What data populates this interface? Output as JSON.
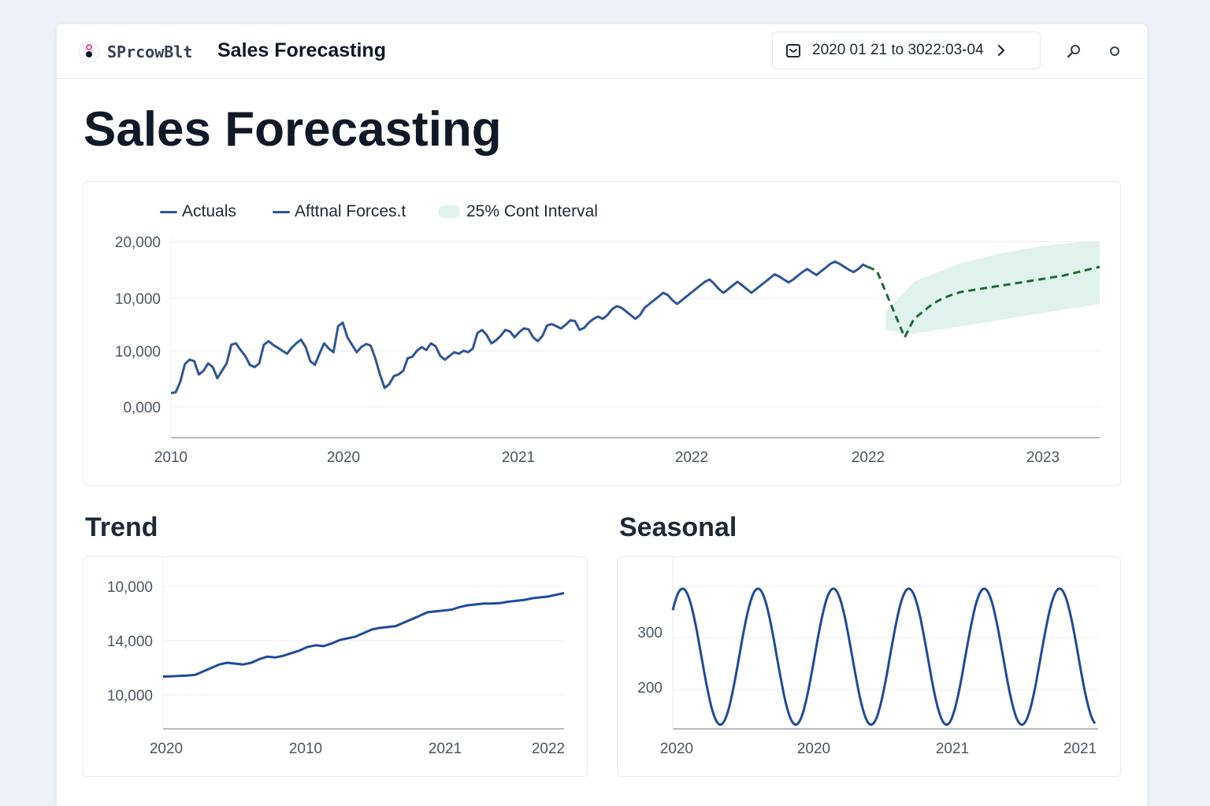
{
  "header": {
    "logo_text": "SPrcowBlt",
    "app_title": "Sales Forecasting",
    "date_range": "2020 01 21 to 3022:03-04",
    "icons": [
      "calendar-icon",
      "chevron-right-icon",
      "search-icon",
      "settings-icon"
    ]
  },
  "page": {
    "title": "Sales Forecasting"
  },
  "colors": {
    "actuals": "#2f5596",
    "forecast": "#1d6b35",
    "interval": "#dff2ec",
    "trend": "#1f4b99",
    "seasonal": "#1f4b99"
  },
  "main_chart": {
    "legend": {
      "actuals": "Actuals",
      "forecast": "Afttnal Forces.t",
      "interval": "25% Cont Interval"
    },
    "y_ticks": [
      "20,000",
      "10,000",
      "10,000",
      "0,000"
    ],
    "x_ticks": [
      "2010",
      "2020",
      "2021",
      "2022",
      "2022",
      "2023"
    ]
  },
  "trend": {
    "title": "Trend",
    "y_ticks": [
      "10,000",
      "14,000",
      "10,000"
    ],
    "x_ticks": [
      "2020",
      "2010",
      "2021",
      "2022"
    ]
  },
  "seasonal": {
    "title": "Seasonal",
    "y_ticks": [
      "300",
      "200"
    ],
    "x_ticks": [
      "2020",
      "2020",
      "2021",
      "2021"
    ]
  },
  "chart_data": [
    {
      "type": "line",
      "legend": [
        "Actuals",
        "Afttnal Forces.t",
        "25% Cont Interval"
      ],
      "legend_position": "top-left",
      "grid": true,
      "ylim": [
        -5500,
        21000
      ],
      "x_domain": [
        0,
        100
      ],
      "series": [
        {
          "name": "Actuals",
          "x": [
            0,
            0.5,
            1,
            1.5,
            2,
            2.5,
            3,
            3.5,
            4,
            4.5,
            5,
            5.5,
            6,
            6.5,
            7,
            7.5,
            8,
            8.5,
            9,
            9.5,
            10,
            10.5,
            11,
            11.5,
            12,
            12.5,
            13,
            13.5,
            14,
            14.5,
            15,
            15.5,
            16,
            16.5,
            17,
            17.5,
            18,
            18.5,
            19,
            19.5,
            20,
            20.5,
            21,
            21.5,
            22,
            22.5,
            23,
            23.5,
            24,
            24.5,
            25,
            25.5,
            26,
            26.5,
            27,
            27.5,
            28,
            28.5,
            29,
            29.5,
            30,
            30.5,
            31,
            31.5,
            32,
            32.5,
            33,
            33.5,
            34,
            34.5,
            35,
            35.5,
            36,
            36.5,
            37,
            37.5,
            38,
            38.5,
            39,
            39.5,
            40,
            40.5,
            41,
            41.5,
            42,
            42.5,
            43,
            43.5,
            44,
            44.5,
            45,
            45.5,
            46,
            46.5,
            47,
            47.5,
            48,
            48.5,
            49,
            49.5,
            50,
            50.5,
            51,
            51.5,
            52,
            52.5,
            53,
            53.5,
            54,
            54.5,
            55,
            55.5,
            56,
            56.5,
            57,
            57.5,
            58,
            58.5,
            59,
            59.5,
            60,
            60.5,
            61,
            61.5,
            62,
            62.5,
            63,
            63.5,
            64,
            64.5,
            65,
            65.5,
            66,
            66.5,
            67,
            67.5,
            68,
            68.5,
            69,
            69.5,
            70,
            70.5,
            71,
            71.5,
            72,
            72.5,
            73,
            73.5,
            74,
            74.5,
            75
          ],
          "values": [
            500,
            600,
            2000,
            4400,
            5000,
            4800,
            3000,
            3500,
            4500,
            4000,
            2500,
            3500,
            4500,
            7000,
            7200,
            6300,
            5500,
            4300,
            4000,
            4500,
            7000,
            7500,
            7000,
            6600,
            6200,
            5800,
            6600,
            7200,
            7700,
            6700,
            4800,
            4300,
            5800,
            7200,
            6500,
            6000,
            9500,
            10000,
            8000,
            7000,
            6000,
            6700,
            7100,
            6900,
            5200,
            3000,
            1200,
            1700,
            2800,
            3000,
            3500,
            5200,
            5400,
            6200,
            6700,
            6300,
            7200,
            6800,
            5500,
            5000,
            5500,
            6000,
            5800,
            6200,
            6000,
            6500,
            8600,
            9000,
            8300,
            7200,
            7600,
            8200,
            9000,
            8800,
            8000,
            8700,
            9200,
            9100,
            8000,
            7500,
            8200,
            9600,
            9800,
            9500,
            9200,
            9700,
            10300,
            10200,
            9000,
            9300,
            10000,
            10500,
            10800,
            10500,
            11000,
            11800,
            12200,
            12000,
            11500,
            11000,
            10500,
            11000,
            12000,
            12500,
            13000,
            13500,
            14000,
            13700,
            13000,
            12500,
            13000,
            13500,
            14000,
            14500,
            15000,
            15500,
            15800,
            15200,
            14500,
            14000,
            14500,
            15000,
            15500,
            15000,
            14500,
            14000,
            14500,
            15000,
            15500,
            16000,
            16500,
            16200,
            15800,
            15400,
            15800,
            16300,
            16800,
            17200,
            16800,
            16400,
            16900,
            17400,
            17900,
            18200,
            17900,
            17500,
            17100,
            16800,
            17200,
            17800,
            17500
          ]
        },
        {
          "name": "Afttnal Forces.t",
          "x": [
            75,
            76,
            77,
            78,
            79,
            80,
            81,
            82,
            83,
            84,
            85,
            86,
            87,
            88,
            89,
            90,
            91,
            92,
            93,
            94,
            95,
            96,
            97,
            98,
            99,
            100
          ],
          "values": [
            17500,
            17000,
            14000,
            11000,
            8000,
            10500,
            11500,
            12500,
            13200,
            13700,
            14100,
            14300,
            14500,
            14700,
            14900,
            15100,
            15300,
            15500,
            15700,
            15900,
            16100,
            16300,
            16600,
            16900,
            17200,
            17500
          ]
        },
        {
          "name": "25% Cont Interval",
          "x": [
            77,
            80,
            85,
            90,
            95,
            100
          ],
          "upper": [
            11500,
            15500,
            18000,
            19500,
            20500,
            21000
          ],
          "lower": [
            9000,
            8500,
            9500,
            10500,
            11500,
            12500
          ]
        }
      ]
    },
    {
      "type": "line",
      "title": "Trend",
      "grid": true,
      "ylim": [
        6500,
        15000
      ],
      "series": [
        {
          "x": [
            0,
            2,
            4,
            6,
            8,
            10,
            12,
            14,
            16,
            18,
            20,
            22,
            24,
            26,
            28,
            30,
            32,
            34,
            36,
            38,
            40,
            42,
            44,
            46,
            48,
            50,
            52,
            54,
            56,
            58,
            60,
            62,
            64,
            66,
            68,
            70,
            72,
            74,
            76,
            78,
            80,
            82,
            84,
            86,
            88,
            90,
            92,
            94,
            96,
            98,
            100
          ],
          "values": [
            9500,
            9520,
            9540,
            9560,
            9600,
            9800,
            10000,
            10200,
            10300,
            10250,
            10200,
            10300,
            10500,
            10650,
            10600,
            10700,
            10850,
            11000,
            11200,
            11300,
            11250,
            11400,
            11600,
            11700,
            11800,
            12000,
            12200,
            12300,
            12350,
            12400,
            12600,
            12800,
            13000,
            13200,
            13250,
            13300,
            13350,
            13500,
            13600,
            13650,
            13700,
            13700,
            13720,
            13800,
            13850,
            13900,
            14000,
            14050,
            14100,
            14200,
            14300
          ]
        }
      ]
    },
    {
      "type": "line",
      "title": "Seasonal",
      "grid": true,
      "ylim": [
        140,
        390
      ],
      "series": [
        {
          "note_period_cycles": 5.6,
          "amplitude": 115,
          "center": 262,
          "x": [
            0,
            100
          ]
        }
      ]
    }
  ]
}
